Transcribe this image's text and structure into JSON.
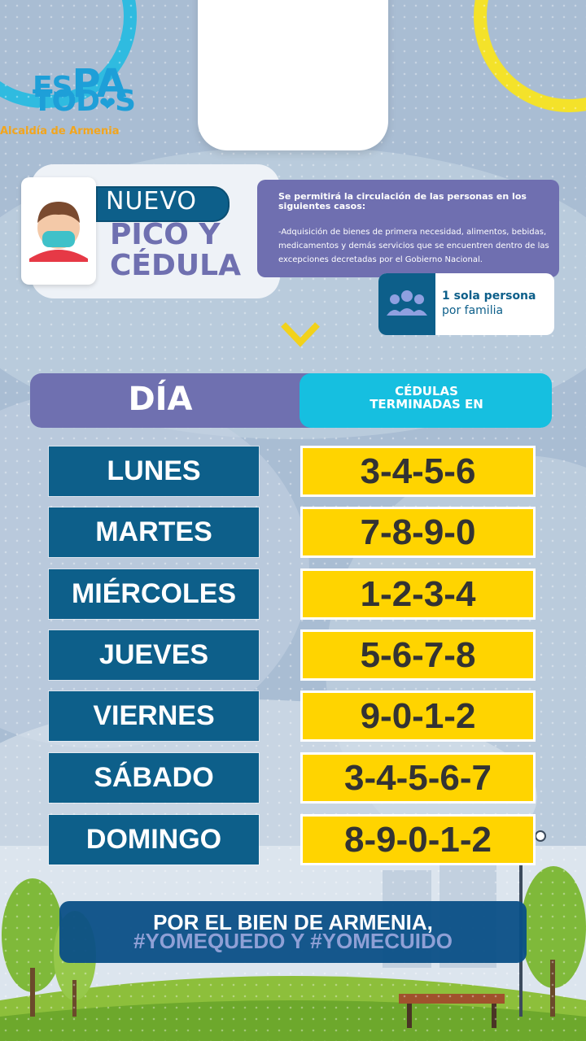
{
  "logo": {
    "line1_a": "ES",
    "line1_b": "PA",
    "line2_a": "TOD",
    "line2_b": "S",
    "subtitle": "Alcaldía de Armenia"
  },
  "pico": {
    "nuevo": "NUEVO",
    "line1": "PICO Y",
    "line2": "CÉDULA"
  },
  "info": {
    "title": "Se permitirá la circulación de las personas en los siguientes casos:",
    "body": "-Adquisición de bienes de primera necesidad, alimentos, bebidas, medicamentos y demás servicios que se encuentren dentro de las excepciones decretadas por el Gobierno Nacional."
  },
  "family": {
    "line1": "1 sola persona",
    "line2": "por familia",
    "icon": "family-icon"
  },
  "table": {
    "header_day": "DÍA",
    "header_numbers_1": "CÉDULAS",
    "header_numbers_2": "TERMINADAS EN",
    "rows": [
      {
        "day": "LUNES",
        "numbers": "3-4-5-6"
      },
      {
        "day": "MARTES",
        "numbers": "7-8-9-0"
      },
      {
        "day": "MIÉRCOLES",
        "numbers": "1-2-3-4"
      },
      {
        "day": "JUEVES",
        "numbers": "5-6-7-8"
      },
      {
        "day": "VIERNES",
        "numbers": "9-0-1-2"
      },
      {
        "day": "SÁBADO",
        "numbers": "3-4-5-6-7"
      },
      {
        "day": "DOMINGO",
        "numbers": "8-9-0-1-2"
      }
    ]
  },
  "footer": {
    "line1": "POR EL BIEN DE ARMENIA,",
    "line2": "#YOMEQUEDO Y #YOMECUIDO"
  },
  "colors": {
    "dark_blue": "#0d5f8a",
    "purple": "#6f70b0",
    "cyan": "#16bfe0",
    "yellow": "#ffd400"
  }
}
